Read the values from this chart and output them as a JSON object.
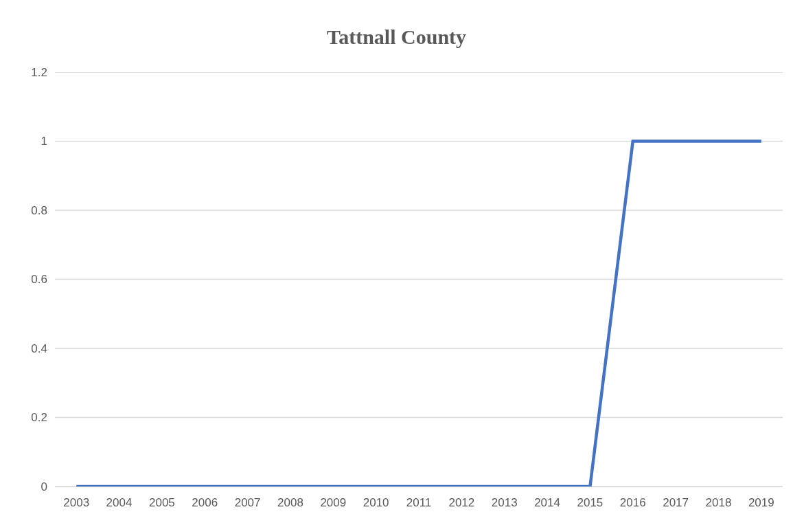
{
  "chart_data": {
    "type": "line",
    "title": "Tattnall County",
    "categories": [
      "2003",
      "2004",
      "2005",
      "2006",
      "2007",
      "2008",
      "2009",
      "2010",
      "2011",
      "2012",
      "2013",
      "2014",
      "2015",
      "2016",
      "2017",
      "2018",
      "2019"
    ],
    "series": [
      {
        "color": "#4472c4",
        "values": [
          0,
          0,
          0,
          0,
          0,
          0,
          0,
          0,
          0,
          0,
          0,
          0,
          0,
          1,
          1,
          1,
          1
        ]
      }
    ],
    "ylim": [
      0,
      1.2
    ],
    "yticks": [
      0,
      0.2,
      0.4,
      0.6,
      0.8,
      1,
      1.2
    ],
    "grid": "y",
    "marker": "none",
    "line_style": "solid"
  }
}
